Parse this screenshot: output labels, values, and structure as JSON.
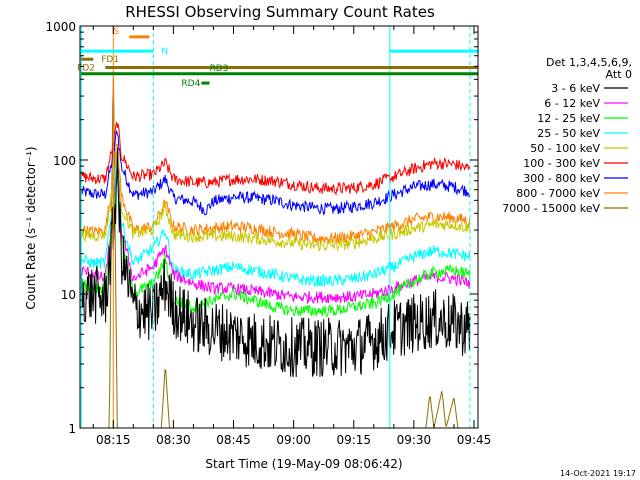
{
  "chart_data": {
    "type": "line",
    "title": "RHESSI Observing Summary Count Rates",
    "xlabel": "Start Time (19-May-09 08:06:42)",
    "ylabel": "Count Rate (s⁻¹ detector⁻¹)",
    "y_scale": "log",
    "ylim": [
      1,
      1000
    ],
    "xlim": [
      "08:06:42",
      "09:46:00"
    ],
    "y_ticks": [
      {
        "v": 1,
        "label": "1"
      },
      {
        "v": 10,
        "label": "10"
      },
      {
        "v": 100,
        "label": "100"
      },
      {
        "v": 1000,
        "label": "1000"
      }
    ],
    "x_ticks": [
      {
        "t": "08:15",
        "label": "08:15"
      },
      {
        "t": "08:30",
        "label": "08:30"
      },
      {
        "t": "08:45",
        "label": "08:45"
      },
      {
        "t": "09:00",
        "label": "09:00"
      },
      {
        "t": "09:15",
        "label": "09:15"
      },
      {
        "t": "09:30",
        "label": "09:30"
      },
      {
        "t": "09:45",
        "label": "09:45"
      }
    ],
    "legend_header": [
      "Det 1,3,4,5,6,9,",
      "Att 0"
    ],
    "legend_position": "right",
    "series": [
      {
        "name": "3 - 6 keV",
        "color": "#000000",
        "points": [
          [
            "08:07",
            10
          ],
          [
            "08:10",
            10
          ],
          [
            "08:13",
            9
          ],
          [
            "08:15",
            30
          ],
          [
            "08:16",
            80
          ],
          [
            "08:17",
            20
          ],
          [
            "08:20",
            8
          ],
          [
            "08:25",
            7
          ],
          [
            "08:28",
            12
          ],
          [
            "08:30",
            8
          ],
          [
            "08:35",
            6
          ],
          [
            "08:40",
            5.5
          ],
          [
            "08:45",
            5
          ],
          [
            "08:50",
            4.5
          ],
          [
            "08:55",
            4.2
          ],
          [
            "09:00",
            4
          ],
          [
            "09:05",
            4
          ],
          [
            "09:10",
            4
          ],
          [
            "09:15",
            4
          ],
          [
            "09:20",
            4.5
          ],
          [
            "09:25",
            5.5
          ],
          [
            "09:30",
            6
          ],
          [
            "09:35",
            6.5
          ],
          [
            "09:40",
            6
          ],
          [
            "09:44",
            5.5
          ]
        ]
      },
      {
        "name": "6 - 12 keV",
        "color": "#ff00ff",
        "points": [
          [
            "08:07",
            15
          ],
          [
            "08:10",
            14
          ],
          [
            "08:13",
            13
          ],
          [
            "08:15",
            40
          ],
          [
            "08:16",
            100
          ],
          [
            "08:17",
            30
          ],
          [
            "08:20",
            13
          ],
          [
            "08:25",
            16
          ],
          [
            "08:28",
            22
          ],
          [
            "08:30",
            14
          ],
          [
            "08:35",
            12
          ],
          [
            "08:40",
            11
          ],
          [
            "08:45",
            11
          ],
          [
            "08:50",
            10.5
          ],
          [
            "08:55",
            10
          ],
          [
            "09:00",
            9.5
          ],
          [
            "09:05",
            9.5
          ],
          [
            "09:10",
            9.5
          ],
          [
            "09:15",
            9.5
          ],
          [
            "09:20",
            10
          ],
          [
            "09:25",
            11
          ],
          [
            "09:30",
            12.5
          ],
          [
            "09:35",
            13.5
          ],
          [
            "09:40",
            13
          ],
          [
            "09:44",
            12
          ]
        ]
      },
      {
        "name": "12 - 25 keV",
        "color": "#00ff00",
        "points": [
          [
            "08:07",
            12
          ],
          [
            "08:10",
            11
          ],
          [
            "08:13",
            11
          ],
          [
            "08:15",
            40
          ],
          [
            "08:16",
            95
          ],
          [
            "08:17",
            25
          ],
          [
            "08:20",
            10
          ],
          [
            "08:25",
            12
          ],
          [
            "08:28",
            18
          ],
          [
            "08:30",
            9
          ],
          [
            "08:35",
            8
          ],
          [
            "08:40",
            9
          ],
          [
            "08:45",
            10
          ],
          [
            "08:50",
            9
          ],
          [
            "08:55",
            8
          ],
          [
            "09:00",
            7.5
          ],
          [
            "09:05",
            7.5
          ],
          [
            "09:10",
            7.5
          ],
          [
            "09:15",
            8
          ],
          [
            "09:20",
            8.5
          ],
          [
            "09:25",
            10
          ],
          [
            "09:30",
            12.5
          ],
          [
            "09:35",
            14.5
          ],
          [
            "09:40",
            15
          ],
          [
            "09:44",
            14
          ]
        ]
      },
      {
        "name": "25 - 50 keV",
        "color": "#00ffff",
        "points": [
          [
            "08:07",
            18
          ],
          [
            "08:10",
            17
          ],
          [
            "08:13",
            17
          ],
          [
            "08:15",
            50
          ],
          [
            "08:16",
            110
          ],
          [
            "08:17",
            35
          ],
          [
            "08:20",
            17
          ],
          [
            "08:25",
            22
          ],
          [
            "08:28",
            30
          ],
          [
            "08:30",
            15
          ],
          [
            "08:35",
            14
          ],
          [
            "08:40",
            15
          ],
          [
            "08:45",
            16
          ],
          [
            "08:50",
            15
          ],
          [
            "08:55",
            14
          ],
          [
            "09:00",
            13
          ],
          [
            "09:05",
            12.5
          ],
          [
            "09:10",
            12.5
          ],
          [
            "09:15",
            13
          ],
          [
            "09:20",
            14
          ],
          [
            "09:25",
            16
          ],
          [
            "09:30",
            19
          ],
          [
            "09:35",
            21
          ],
          [
            "09:40",
            20
          ],
          [
            "09:44",
            19
          ]
        ]
      },
      {
        "name": "50 - 100 keV",
        "color": "#c8c800",
        "points": [
          [
            "08:07",
            28
          ],
          [
            "08:10",
            27
          ],
          [
            "08:13",
            28
          ],
          [
            "08:15",
            60
          ],
          [
            "08:16",
            120
          ],
          [
            "08:17",
            45
          ],
          [
            "08:20",
            28
          ],
          [
            "08:25",
            30
          ],
          [
            "08:28",
            45
          ],
          [
            "08:30",
            28
          ],
          [
            "08:35",
            27
          ],
          [
            "08:40",
            27
          ],
          [
            "08:45",
            27
          ],
          [
            "08:50",
            26
          ],
          [
            "08:55",
            25
          ],
          [
            "09:00",
            24
          ],
          [
            "09:05",
            23
          ],
          [
            "09:10",
            23
          ],
          [
            "09:15",
            24
          ],
          [
            "09:20",
            26
          ],
          [
            "09:25",
            28
          ],
          [
            "09:30",
            31
          ],
          [
            "09:35",
            33
          ],
          [
            "09:40",
            33
          ],
          [
            "09:44",
            31
          ]
        ]
      },
      {
        "name": "100 - 300 keV",
        "color": "#ff0000",
        "points": [
          [
            "08:07",
            75
          ],
          [
            "08:10",
            73
          ],
          [
            "08:13",
            72
          ],
          [
            "08:15",
            130
          ],
          [
            "08:16",
            195
          ],
          [
            "08:17",
            110
          ],
          [
            "08:20",
            75
          ],
          [
            "08:25",
            78
          ],
          [
            "08:28",
            95
          ],
          [
            "08:30",
            72
          ],
          [
            "08:35",
            68
          ],
          [
            "08:40",
            68
          ],
          [
            "08:45",
            72
          ],
          [
            "08:50",
            72
          ],
          [
            "08:55",
            70
          ],
          [
            "09:00",
            66
          ],
          [
            "09:05",
            62
          ],
          [
            "09:10",
            61
          ],
          [
            "09:15",
            62
          ],
          [
            "09:20",
            66
          ],
          [
            "09:25",
            75
          ],
          [
            "09:30",
            86
          ],
          [
            "09:35",
            95
          ],
          [
            "09:40",
            93
          ],
          [
            "09:44",
            86
          ]
        ]
      },
      {
        "name": "300 - 800 keV",
        "color": "#0000ff",
        "points": [
          [
            "08:07",
            58
          ],
          [
            "08:10",
            56
          ],
          [
            "08:13",
            55
          ],
          [
            "08:15",
            110
          ],
          [
            "08:16",
            170
          ],
          [
            "08:17",
            90
          ],
          [
            "08:20",
            55
          ],
          [
            "08:25",
            58
          ],
          [
            "08:28",
            72
          ],
          [
            "08:30",
            52
          ],
          [
            "08:35",
            49
          ],
          [
            "08:38",
            42
          ],
          [
            "08:40",
            49
          ],
          [
            "08:45",
            53
          ],
          [
            "08:50",
            52
          ],
          [
            "08:55",
            50
          ],
          [
            "09:00",
            46
          ],
          [
            "09:05",
            44
          ],
          [
            "09:10",
            43
          ],
          [
            "09:15",
            45
          ],
          [
            "09:20",
            48
          ],
          [
            "09:25",
            55
          ],
          [
            "09:30",
            63
          ],
          [
            "09:35",
            66
          ],
          [
            "09:40",
            63
          ],
          [
            "09:44",
            58
          ]
        ]
      },
      {
        "name": "800 - 7000 keV",
        "color": "#ff8000",
        "points": [
          [
            "08:07",
            30
          ],
          [
            "08:10",
            29
          ],
          [
            "08:13",
            30
          ],
          [
            "08:15",
            70
          ],
          [
            "08:16",
            140
          ],
          [
            "08:17",
            55
          ],
          [
            "08:20",
            30
          ],
          [
            "08:25",
            32
          ],
          [
            "08:28",
            48
          ],
          [
            "08:30",
            32
          ],
          [
            "08:35",
            30
          ],
          [
            "08:40",
            31
          ],
          [
            "08:45",
            32
          ],
          [
            "08:50",
            31
          ],
          [
            "08:55",
            29
          ],
          [
            "09:00",
            28
          ],
          [
            "09:05",
            26
          ],
          [
            "09:10",
            26
          ],
          [
            "09:15",
            27
          ],
          [
            "09:20",
            29
          ],
          [
            "09:25",
            32
          ],
          [
            "09:30",
            36
          ],
          [
            "09:35",
            38
          ],
          [
            "09:40",
            37
          ],
          [
            "09:44",
            35
          ]
        ]
      },
      {
        "name": "7000 - 15000 keV",
        "color": "#8b7000",
        "points": [
          [
            "08:07",
            1
          ],
          [
            "08:14",
            1
          ],
          [
            "08:15",
            600
          ],
          [
            "08:16",
            1
          ],
          [
            "08:27",
            1
          ],
          [
            "08:28",
            3
          ],
          [
            "08:29",
            1
          ],
          [
            "09:33",
            1
          ],
          [
            "09:34",
            1.8
          ],
          [
            "09:35",
            1
          ],
          [
            "09:37",
            1.9
          ],
          [
            "09:38",
            1
          ],
          [
            "09:40",
            1.7
          ],
          [
            "09:41",
            1
          ]
        ]
      }
    ],
    "flag_bars": [
      {
        "label": "S",
        "color": "#ff8000",
        "start": "08:19",
        "end": "08:24",
        "y": 830,
        "label_time": "08:15",
        "text_above": true
      },
      {
        "label": "N",
        "color": "#00ffff",
        "start": "08:07",
        "end": "08:25",
        "y": 650,
        "label_time": "08:27",
        "text_above": false
      },
      {
        "label": "N",
        "color": "#00ffff",
        "start": "09:24",
        "end": "09:46",
        "y": 650,
        "label_time": "",
        "text_above": false
      },
      {
        "label": "FD1",
        "color": "#8b7000",
        "start": "08:07",
        "end": "08:10",
        "y": 565,
        "label_time": "08:12",
        "text_above": false
      },
      {
        "label": "FD2",
        "color": "#8b7000",
        "start": "08:13",
        "end": "09:46",
        "y": 490,
        "label_time": "08:06",
        "text_above": false
      },
      {
        "label": "RD3",
        "color": "#008000",
        "start": "08:07",
        "end": "09:46",
        "y": 440,
        "label_time": "08:39",
        "text_above": true
      },
      {
        "label": "RD4",
        "color": "#008000",
        "start": "08:37",
        "end": "08:39",
        "y": 375,
        "label_time": "08:32",
        "text_above": false
      }
    ],
    "vertical_markers": [
      {
        "t": "08:07",
        "color": "#00ffff",
        "style": "solid"
      },
      {
        "t": "08:15",
        "color": "#ff8000",
        "style": "solid"
      },
      {
        "t": "08:25",
        "color": "#00ffff",
        "style": "dashed"
      },
      {
        "t": "09:24",
        "color": "#00ffff",
        "style": "solid"
      },
      {
        "t": "09:44",
        "color": "#00ffff",
        "style": "dashed"
      }
    ]
  },
  "footer": {
    "timestamp": "14-Oct-2021 19:17"
  }
}
